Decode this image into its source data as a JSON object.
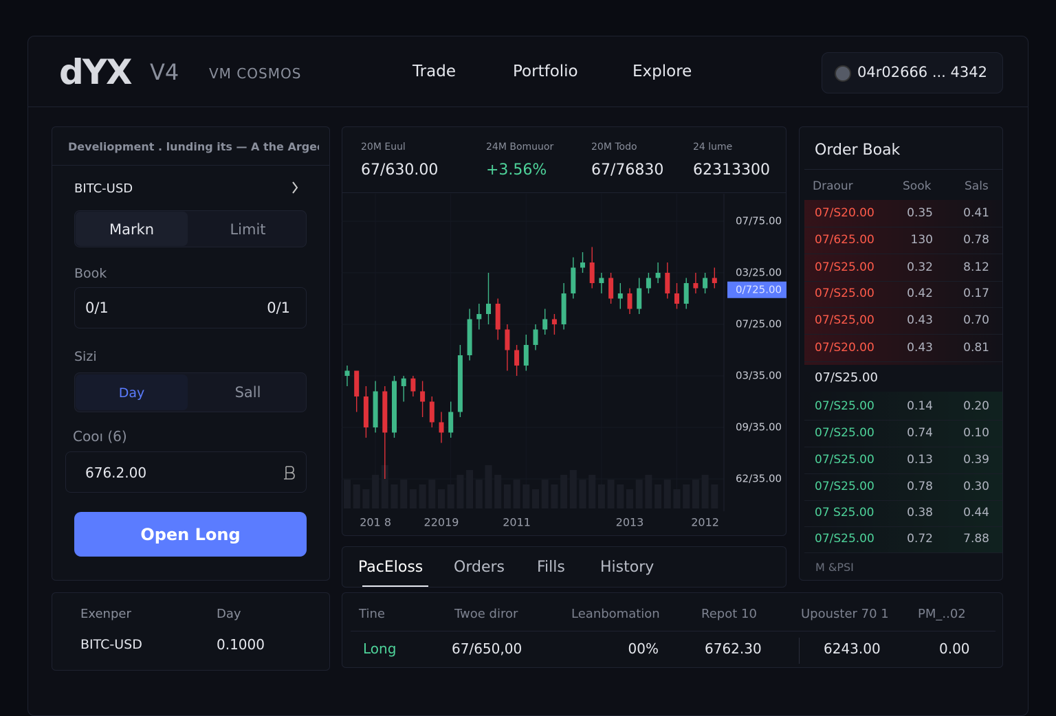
{
  "header": {
    "logo": "dYX",
    "version": "V4",
    "network": "VM COSMOS",
    "nav": [
      "Trade",
      "Portfolio",
      "Explore"
    ],
    "wallet": "04r02666 ... 4342"
  },
  "order_form": {
    "notice": "Develiopment . lunding its — A the Argeore",
    "market": "BITC-USD",
    "order_types": [
      "Markn",
      "Limit"
    ],
    "book_label": "Book",
    "book_values": [
      "0/1",
      "0/1"
    ],
    "size_label": "Sizi",
    "size_tabs": [
      "Day",
      "Sall"
    ],
    "cost_label": "Cooı (6)",
    "cost_value": "676.2.00",
    "button": "Open Long"
  },
  "summary": {
    "headers": [
      "Exenper",
      "Day"
    ],
    "row": [
      "BITC-USD",
      "0.1000"
    ]
  },
  "stats": [
    {
      "label": "20M Euul",
      "value": "67/630.00"
    },
    {
      "label": "24M Bomuuor",
      "value": "+3.56%"
    },
    {
      "label": "20M Todo",
      "value": "67/76830"
    },
    {
      "label": "24 lume",
      "value": "62313300"
    }
  ],
  "chart_data": {
    "type": "candlestick",
    "up_color": "#3fb889",
    "down_color": "#e0323a",
    "grid": true,
    "ylim": [
      0.4,
      6.4
    ],
    "yticks": [
      {
        "value": 6,
        "label": "07/75.00"
      },
      {
        "value": 5,
        "label": "03/25.00"
      },
      {
        "value": 4,
        "label": "07/25.00"
      },
      {
        "value": 3,
        "label": "03/35.00"
      },
      {
        "value": 2,
        "label": "09/35.00"
      },
      {
        "value": 1,
        "label": "62/35.00"
      }
    ],
    "price_marker": {
      "value": 4.67,
      "label": "0/725.00"
    },
    "categories": [
      null,
      null,
      null,
      "201 8",
      null,
      null,
      null,
      null,
      null,
      null,
      "22019",
      null,
      null,
      null,
      null,
      null,
      null,
      null,
      "2011",
      null,
      null,
      null,
      null,
      null,
      null,
      null,
      null,
      null,
      null,
      null,
      "2013",
      null,
      null,
      null,
      null,
      null,
      null,
      null,
      "2012",
      null
    ],
    "candles": [
      {
        "open": 3.0,
        "high": 3.2,
        "low": 2.8,
        "close": 3.1
      },
      {
        "open": 3.1,
        "high": 3.1,
        "low": 2.3,
        "close": 2.6
      },
      {
        "open": 2.6,
        "high": 2.8,
        "low": 1.8,
        "close": 2.0
      },
      {
        "open": 2.0,
        "high": 2.9,
        "low": 1.9,
        "close": 2.7
      },
      {
        "open": 2.7,
        "high": 2.8,
        "low": 1.0,
        "close": 1.9
      },
      {
        "open": 1.9,
        "high": 3.0,
        "low": 1.8,
        "close": 2.9
      },
      {
        "open": 2.8,
        "high": 3.0,
        "low": 2.5,
        "close": 2.95
      },
      {
        "open": 2.95,
        "high": 3.0,
        "low": 2.6,
        "close": 2.7
      },
      {
        "open": 2.7,
        "high": 2.9,
        "low": 2.2,
        "close": 2.5
      },
      {
        "open": 2.5,
        "high": 2.6,
        "low": 2.0,
        "close": 2.1
      },
      {
        "open": 2.1,
        "high": 2.3,
        "low": 1.7,
        "close": 1.9
      },
      {
        "open": 1.9,
        "high": 2.5,
        "low": 1.8,
        "close": 2.3
      },
      {
        "open": 2.3,
        "high": 3.6,
        "low": 2.2,
        "close": 3.4
      },
      {
        "open": 3.4,
        "high": 4.3,
        "low": 3.3,
        "close": 4.1
      },
      {
        "open": 4.1,
        "high": 4.4,
        "low": 3.9,
        "close": 4.2
      },
      {
        "open": 4.2,
        "high": 5.0,
        "low": 4.0,
        "close": 4.4
      },
      {
        "open": 4.4,
        "high": 4.5,
        "low": 3.7,
        "close": 3.9
      },
      {
        "open": 3.9,
        "high": 4.0,
        "low": 3.1,
        "close": 3.5
      },
      {
        "open": 3.5,
        "high": 3.6,
        "low": 3.0,
        "close": 3.2
      },
      {
        "open": 3.2,
        "high": 3.8,
        "low": 3.1,
        "close": 3.6
      },
      {
        "open": 3.6,
        "high": 4.0,
        "low": 3.5,
        "close": 3.9
      },
      {
        "open": 3.9,
        "high": 4.3,
        "low": 3.8,
        "close": 4.1
      },
      {
        "open": 4.1,
        "high": 4.2,
        "low": 3.8,
        "close": 4.0
      },
      {
        "open": 4.0,
        "high": 4.8,
        "low": 3.9,
        "close": 4.6
      },
      {
        "open": 4.6,
        "high": 5.3,
        "low": 4.5,
        "close": 5.1
      },
      {
        "open": 5.1,
        "high": 5.4,
        "low": 5.0,
        "close": 5.2
      },
      {
        "open": 5.2,
        "high": 5.5,
        "low": 4.7,
        "close": 4.8
      },
      {
        "open": 4.8,
        "high": 5.0,
        "low": 4.6,
        "close": 4.9
      },
      {
        "open": 4.9,
        "high": 5.0,
        "low": 4.4,
        "close": 4.5
      },
      {
        "open": 4.5,
        "high": 4.8,
        "low": 4.3,
        "close": 4.6
      },
      {
        "open": 4.6,
        "high": 4.7,
        "low": 4.2,
        "close": 4.3
      },
      {
        "open": 4.3,
        "high": 4.9,
        "low": 4.2,
        "close": 4.7
      },
      {
        "open": 4.7,
        "high": 5.0,
        "low": 4.6,
        "close": 4.9
      },
      {
        "open": 4.9,
        "high": 5.2,
        "low": 4.8,
        "close": 5.0
      },
      {
        "open": 5.0,
        "high": 5.2,
        "low": 4.5,
        "close": 4.6
      },
      {
        "open": 4.6,
        "high": 4.8,
        "low": 4.3,
        "close": 4.4
      },
      {
        "open": 4.4,
        "high": 4.9,
        "low": 4.3,
        "close": 4.8
      },
      {
        "open": 4.8,
        "high": 5.0,
        "low": 4.6,
        "close": 4.7
      },
      {
        "open": 4.7,
        "high": 5.0,
        "low": 4.6,
        "close": 4.9
      },
      {
        "open": 4.9,
        "high": 5.1,
        "low": 4.7,
        "close": 4.8
      }
    ],
    "volumes": [
      6,
      5,
      4,
      7,
      9,
      5,
      6,
      4,
      5,
      6,
      4,
      5,
      7,
      8,
      6,
      9,
      7,
      5,
      6,
      5,
      4,
      6,
      5,
      7,
      8,
      6,
      7,
      5,
      6,
      5,
      4,
      6,
      7,
      5,
      6,
      4,
      5,
      6,
      7,
      5
    ]
  },
  "order_book": {
    "title": "Order Boak",
    "headers": [
      "Draour",
      "Sook",
      "Sals"
    ],
    "asks": [
      [
        "07/S20.00",
        "0.35",
        "0.41"
      ],
      [
        "07/625.00",
        "130",
        "0.78"
      ],
      [
        "07/S25.00",
        "0.32",
        "8.12"
      ],
      [
        "07/S25.00",
        "0.42",
        "0.17"
      ],
      [
        "07/S25,00",
        "0.43",
        "0.70"
      ],
      [
        "07/S20.00",
        "0.43",
        "0.81"
      ]
    ],
    "mid": "07/S25.00",
    "bids": [
      [
        "07/S25.00",
        "0.14",
        "0.20"
      ],
      [
        "07/S25.00",
        "0.74",
        "0.10"
      ],
      [
        "07/S25.00",
        "0.13",
        "0.39"
      ],
      [
        "07/S25.00",
        "0.78",
        "0.30"
      ],
      [
        "07 S25.00",
        "0.38",
        "0.44"
      ],
      [
        "07/S25.00",
        "0.72",
        "7.88"
      ]
    ],
    "footer": "M &PSI"
  },
  "positions": {
    "tabs": [
      "PacEloss",
      "Orders",
      "Fills",
      "History"
    ],
    "headers": [
      "Tine",
      "Twoe diror",
      "Leanbomation",
      "Repot 10",
      "Upouster 70 1",
      "PM_..02"
    ],
    "row": [
      "Long",
      "67/650,00",
      "00%",
      "6762.30",
      "6243.00",
      "0.00"
    ]
  }
}
